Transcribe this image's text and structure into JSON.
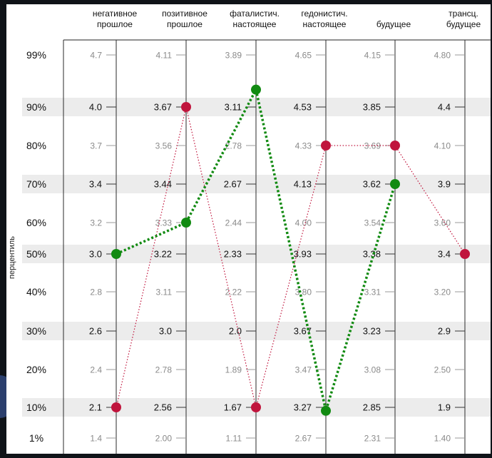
{
  "chart_data": {
    "type": "line",
    "ylabel": "перцентиль",
    "row_labels": [
      "99%",
      "90%",
      "80%",
      "70%",
      "60%",
      "50%",
      "40%",
      "30%",
      "20%",
      "10%",
      "1%"
    ],
    "bold_rows": [
      1,
      3,
      5,
      7,
      9
    ],
    "columns": [
      {
        "title": [
          "негативное",
          "прошлое"
        ],
        "ticks": [
          "4.7",
          "4.0",
          "3.7",
          "3.4",
          "3.2",
          "3.0",
          "2.8",
          "2.6",
          "2.4",
          "2.1",
          "1.4"
        ]
      },
      {
        "title": [
          "позитивное",
          "прошлое"
        ],
        "ticks": [
          "4.11",
          "3.67",
          "3.56",
          "3.44",
          "3.33",
          "3.22",
          "3.11",
          "3.0",
          "2.78",
          "2.56",
          "2.00"
        ]
      },
      {
        "title": [
          "фаталистич.",
          "настоящее"
        ],
        "ticks": [
          "3.89",
          "3.11",
          "2.78",
          "2.67",
          "2.44",
          "2.33",
          "2.22",
          "2.0",
          "1.89",
          "1.67",
          "1.11"
        ]
      },
      {
        "title": [
          "гедонистич.",
          "настоящее"
        ],
        "ticks": [
          "4.65",
          "4.53",
          "4.33",
          "4.13",
          "4.00",
          "3.93",
          "3.80",
          "3.67",
          "3.47",
          "3.27",
          "2.67"
        ]
      },
      {
        "title": [
          "",
          "будущее"
        ],
        "ticks": [
          "4.15",
          "3.85",
          "3.69",
          "3.62",
          "3.54",
          "3.38",
          "3.31",
          "3.23",
          "3.08",
          "2.85",
          "2.31"
        ]
      },
      {
        "title": [
          "трансц.",
          "будущее"
        ],
        "ticks": [
          "4.80",
          "4.4",
          "4.10",
          "3.9",
          "3.60",
          "3.4",
          "3.20",
          "2.9",
          "2.50",
          "1.9",
          "1.40"
        ]
      }
    ],
    "series": [
      {
        "color": "#c0143c",
        "style": "dotted-thin",
        "values": [
          "2.1",
          "3.67",
          "1.67",
          "4.33",
          "3.69",
          "3.4"
        ]
      },
      {
        "color": "#118a11",
        "style": "dotted-thick",
        "values": [
          "3.0",
          "3.33",
          "3.11",
          "3.27",
          "3.62",
          null
        ]
      }
    ],
    "series_points": [
      [
        {
          "col": 0,
          "pct": 10
        },
        {
          "col": 1,
          "pct": 90
        },
        {
          "col": 2,
          "pct": 10
        },
        {
          "col": 3,
          "pct": 80
        },
        {
          "col": 4,
          "pct": 80
        },
        {
          "col": 5,
          "pct": 50
        }
      ],
      [
        {
          "col": 0,
          "pct": 50
        },
        {
          "col": 1,
          "pct": 60
        },
        {
          "col": 2,
          "pct": 93
        },
        {
          "col": 3,
          "pct": 9
        },
        {
          "col": 4,
          "pct": 70
        }
      ]
    ]
  }
}
